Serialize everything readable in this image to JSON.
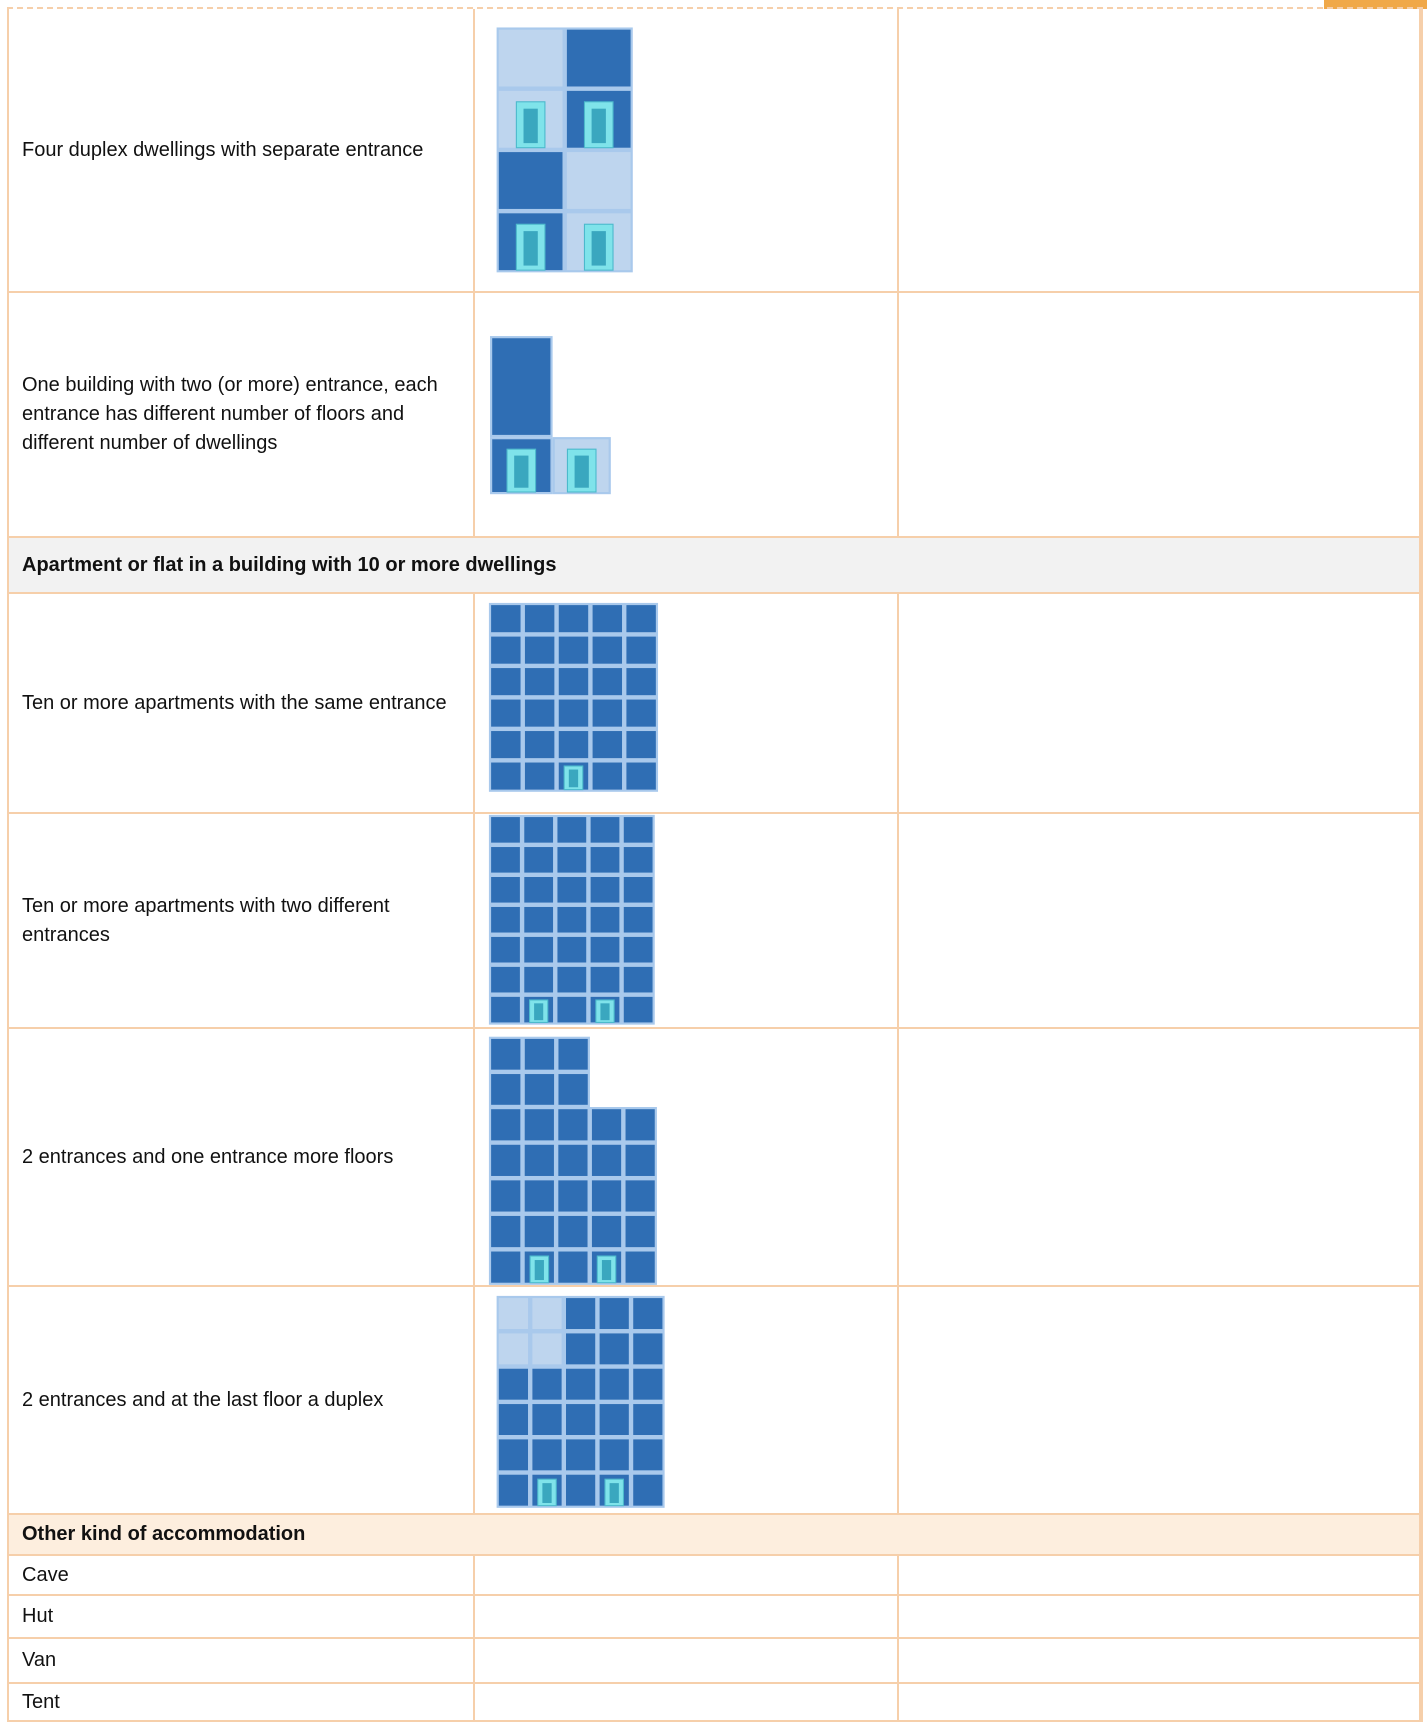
{
  "table": {
    "rows": [
      {
        "label": "Four duplex dwellings with separate entrance"
      },
      {
        "label": "One building with two (or more) entrance, each entrance has different number of floors and different number of dwellings"
      },
      {
        "section": "Apartment or flat in a building with 10 or more dwellings"
      },
      {
        "label": "Ten or more apartments with the same entrance"
      },
      {
        "label": "Ten or more apartments with two different entrances"
      },
      {
        "label": "2 entrances and one entrance more floors"
      },
      {
        "label": "2 entrances and at the last floor a duplex"
      },
      {
        "section": "Other kind of accommodation"
      },
      {
        "label": "Cave"
      },
      {
        "label": "Hut"
      },
      {
        "label": "Van"
      },
      {
        "label": "Tent"
      }
    ]
  }
}
